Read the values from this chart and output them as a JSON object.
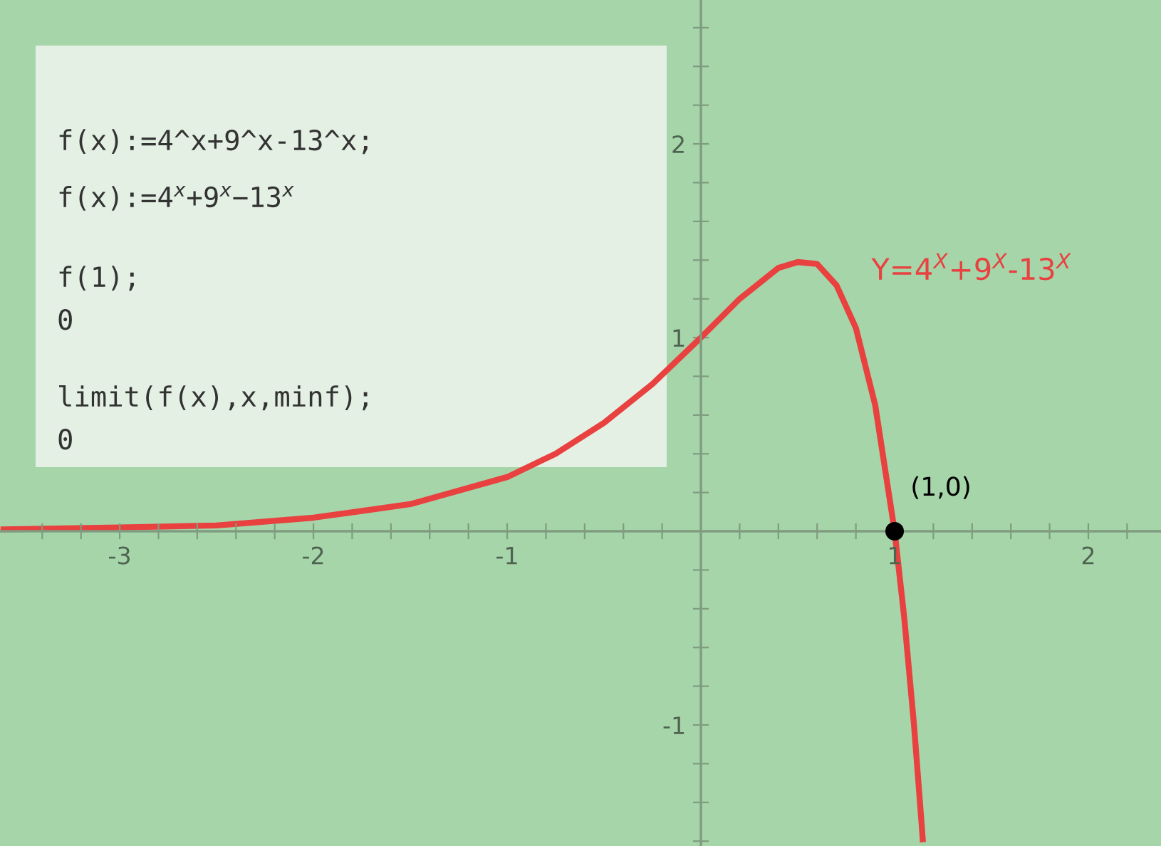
{
  "chart_data": {
    "type": "line",
    "x": [
      -3.6,
      -3,
      -2.5,
      -2,
      -1.5,
      -1,
      -0.75,
      -0.5,
      -0.25,
      0,
      0.2,
      0.4,
      0.5,
      0.6,
      0.7,
      0.8,
      0.9,
      1,
      1.05,
      1.1,
      1.14,
      1.145
    ],
    "series": [
      {
        "name": "Y=4$^{X}$+9$^{X}$-13$^{X}$",
        "color": "#e8413f",
        "values": [
          0.01,
          0.02,
          0.03,
          0.07,
          0.14,
          0.28,
          0.4,
          0.56,
          0.76,
          1,
          1.2,
          1.36,
          1.39,
          1.38,
          1.27,
          1.05,
          0.65,
          0,
          -0.45,
          -1.0,
          -1.52,
          -1.59
        ]
      },
      {
        "type": "scatter",
        "x": [
          1
        ],
        "color": "#000000",
        "values": [
          0
        ]
      }
    ],
    "annotations": [
      {
        "text": "(1,0)",
        "x": 1,
        "y": 0
      },
      "f(x):=4^x+9^x-13^x;",
      "f(x):=4$^{x}$+9$^{x}$−13$^{x}$",
      "f(1);",
      "0",
      "limit(f(x),x,minf);",
      "0"
    ],
    "xlim": [
      -3.618,
      2.375
    ],
    "ylim": [
      -1.625,
      2.743
    ],
    "xticks": [
      {
        "value": -3.4,
        "label": null
      },
      {
        "value": -3.2,
        "label": null
      },
      -3,
      {
        "value": -2.8,
        "label": null
      },
      {
        "value": -2.6,
        "label": null
      },
      {
        "value": -2.4,
        "label": null
      },
      {
        "value": -2.2,
        "label": null
      },
      -2,
      {
        "value": -1.8,
        "label": null
      },
      {
        "value": -1.6,
        "label": null
      },
      {
        "value": -1.4,
        "label": null
      },
      {
        "value": -1.2,
        "label": null
      },
      -1,
      {
        "value": -0.8,
        "label": null
      },
      {
        "value": -0.6,
        "label": null
      },
      {
        "value": -0.4,
        "label": null
      },
      {
        "value": -0.2,
        "label": null
      },
      {
        "value": 0.2,
        "label": null
      },
      {
        "value": 0.4,
        "label": null
      },
      {
        "value": 0.6,
        "label": null
      },
      {
        "value": 0.8,
        "label": null
      },
      1,
      {
        "value": 1.2,
        "label": null
      },
      {
        "value": 1.4,
        "label": null
      },
      {
        "value": 1.6,
        "label": null
      },
      {
        "value": 1.8,
        "label": null
      },
      2,
      {
        "value": 2.2,
        "label": null
      }
    ],
    "yticks": [
      {
        "value": -1.6,
        "label": null
      },
      {
        "value": -1.4,
        "label": null
      },
      {
        "value": -1.2,
        "label": null
      },
      -1,
      {
        "value": -0.8,
        "label": null
      },
      {
        "value": -0.6,
        "label": null
      },
      {
        "value": -0.4,
        "label": null
      },
      {
        "value": -0.2,
        "label": null
      },
      {
        "value": 0.2,
        "label": null
      },
      {
        "value": 0.4,
        "label": null
      },
      {
        "value": 0.6,
        "label": null
      },
      {
        "value": 0.8,
        "label": null
      },
      1,
      {
        "value": 1.2,
        "label": null
      },
      {
        "value": 1.4,
        "label": null
      },
      {
        "value": 1.6,
        "label": null
      },
      {
        "value": 1.8,
        "label": null
      },
      2,
      {
        "value": 2.2,
        "label": null
      },
      {
        "value": 2.4,
        "label": null
      },
      {
        "value": 2.6,
        "label": null
      }
    ],
    "grid": false,
    "legend": false
  }
}
